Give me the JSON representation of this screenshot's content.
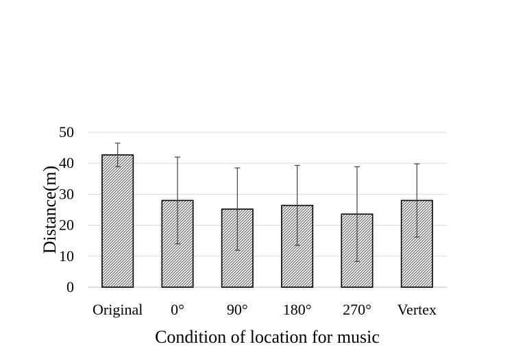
{
  "chart_data": {
    "type": "bar",
    "title": "",
    "xlabel": "Condition of location for music",
    "ylabel": "Distance(m)",
    "categories": [
      "Original",
      "0°",
      "90°",
      "180°",
      "270°",
      "Vertex"
    ],
    "values": [
      42.7,
      28.0,
      25.2,
      26.4,
      23.6,
      28.0
    ],
    "error_upper": [
      46.5,
      42.0,
      38.5,
      39.3,
      38.9,
      39.8
    ],
    "error_lower": [
      38.9,
      14.0,
      11.9,
      13.5,
      8.3,
      16.2
    ],
    "ylim": [
      0,
      50
    ],
    "yticks": [
      "0",
      "10",
      "20",
      "30",
      "40",
      "50"
    ],
    "ytick_values": [
      0,
      10,
      20,
      30,
      40,
      50
    ],
    "grid": true,
    "legend": "none",
    "bar_fill": "diagonal-hatch",
    "colors": {
      "bar_stroke": "#000000",
      "grid": "#d9d9d9",
      "error_bar": "#404040"
    }
  }
}
